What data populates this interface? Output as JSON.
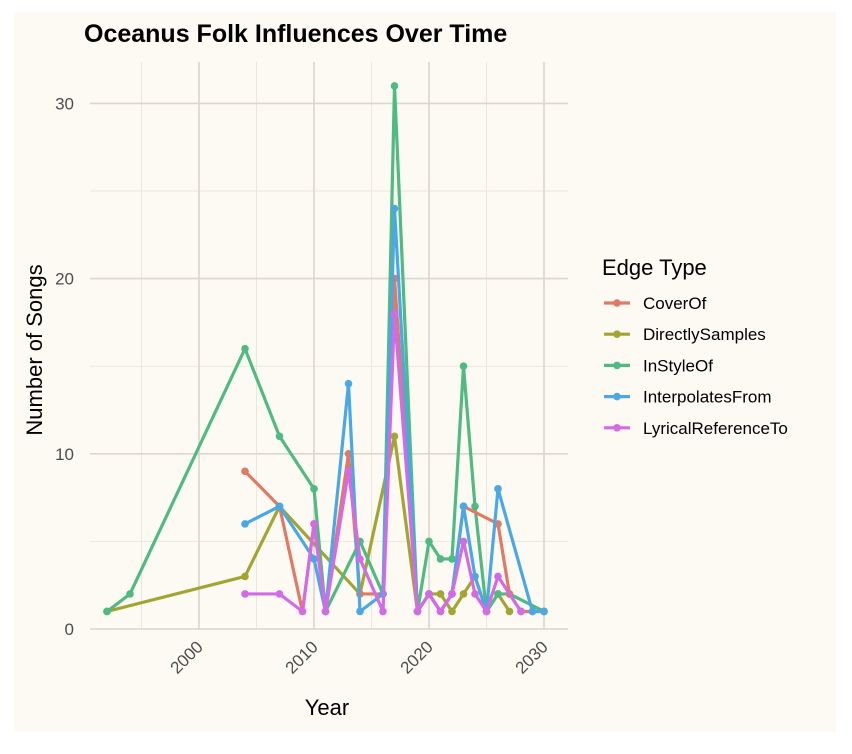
{
  "chart_data": {
    "type": "line",
    "title": "Oceanus Folk Influences Over Time",
    "xlabel": "Year",
    "ylabel": "Number of Songs",
    "xlim": [
      1992,
      2031
    ],
    "ylim": [
      0,
      32
    ],
    "x_ticks": [
      2000,
      2010,
      2020,
      2030
    ],
    "y_ticks": [
      0,
      10,
      20,
      30
    ],
    "grid": true,
    "legend_title": "Edge Type",
    "legend_position": "right",
    "series": [
      {
        "name": "CoverOf",
        "color": "#e07a64",
        "points": [
          [
            2004,
            9
          ],
          [
            2007,
            7
          ],
          [
            2009,
            1
          ],
          [
            2010,
            6
          ],
          [
            2011,
            1
          ],
          [
            2013,
            10
          ],
          [
            2014,
            2
          ],
          [
            2016,
            2
          ],
          [
            2017,
            20
          ],
          [
            2019,
            1
          ],
          [
            2020,
            2
          ],
          [
            2021,
            1
          ],
          [
            2022,
            2
          ],
          [
            2023,
            7
          ],
          [
            2026,
            6
          ],
          [
            2027,
            2
          ],
          [
            2028,
            1
          ],
          [
            2029,
            1
          ],
          [
            2030,
            1
          ]
        ]
      },
      {
        "name": "DirectlySamples",
        "color": "#a3a533",
        "points": [
          [
            1992,
            1
          ],
          [
            2004,
            3
          ],
          [
            2007,
            7
          ],
          [
            2014,
            2
          ],
          [
            2017,
            11
          ],
          [
            2019,
            1
          ],
          [
            2020,
            2
          ],
          [
            2021,
            2
          ],
          [
            2022,
            1
          ],
          [
            2023,
            2
          ],
          [
            2024,
            3
          ],
          [
            2025,
            1
          ],
          [
            2026,
            2
          ],
          [
            2027,
            1
          ]
        ]
      },
      {
        "name": "InStyleOf",
        "color": "#4fba82",
        "points": [
          [
            1992,
            1
          ],
          [
            1994,
            2
          ],
          [
            2004,
            16
          ],
          [
            2007,
            11
          ],
          [
            2010,
            8
          ],
          [
            2011,
            1
          ],
          [
            2014,
            5
          ],
          [
            2016,
            2
          ],
          [
            2017,
            31
          ],
          [
            2019,
            1
          ],
          [
            2020,
            5
          ],
          [
            2021,
            4
          ],
          [
            2022,
            4
          ],
          [
            2023,
            15
          ],
          [
            2024,
            7
          ],
          [
            2025,
            1
          ],
          [
            2026,
            2
          ],
          [
            2027,
            2
          ],
          [
            2030,
            1
          ]
        ]
      },
      {
        "name": "InterpolatesFrom",
        "color": "#4aa8e6",
        "points": [
          [
            2004,
            6
          ],
          [
            2007,
            7
          ],
          [
            2010,
            4
          ],
          [
            2011,
            1
          ],
          [
            2013,
            14
          ],
          [
            2014,
            1
          ],
          [
            2016,
            2
          ],
          [
            2017,
            24
          ],
          [
            2019,
            1
          ],
          [
            2020,
            2
          ],
          [
            2021,
            1
          ],
          [
            2022,
            2
          ],
          [
            2023,
            7
          ],
          [
            2024,
            3
          ],
          [
            2025,
            1
          ],
          [
            2026,
            8
          ],
          [
            2029,
            1
          ],
          [
            2030,
            1
          ]
        ]
      },
      {
        "name": "LyricalReferenceTo",
        "color": "#d36be6",
        "points": [
          [
            2004,
            2
          ],
          [
            2007,
            2
          ],
          [
            2009,
            1
          ],
          [
            2010,
            6
          ],
          [
            2011,
            1
          ],
          [
            2013,
            9
          ],
          [
            2014,
            4
          ],
          [
            2016,
            1
          ],
          [
            2017,
            18
          ],
          [
            2019,
            1
          ],
          [
            2020,
            2
          ],
          [
            2021,
            1
          ],
          [
            2022,
            2
          ],
          [
            2023,
            5
          ],
          [
            2024,
            2
          ],
          [
            2025,
            1
          ],
          [
            2026,
            3
          ],
          [
            2028,
            1
          ]
        ]
      }
    ]
  }
}
